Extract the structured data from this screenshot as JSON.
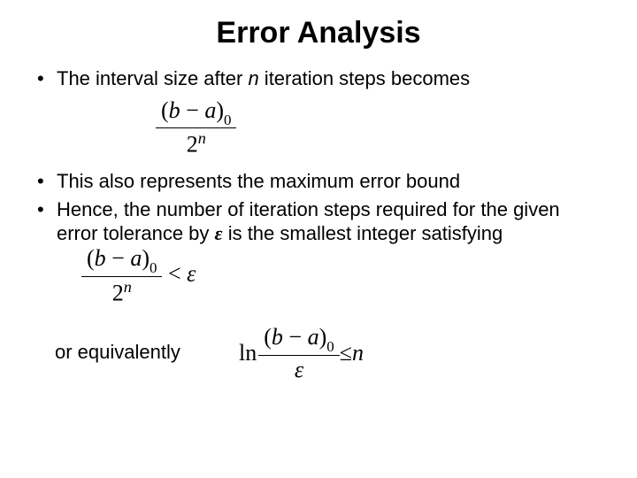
{
  "title": "Error Analysis",
  "bullets": {
    "b1_pre": "The interval size after ",
    "b1_n": "n",
    "b1_post": " iteration steps becomes",
    "b2": "This also represents the maximum error bound",
    "b3_pre": "Hence, the number of iteration steps required for the given error tolerance by ",
    "b3_post": "is the smallest integer satisfying",
    "cont": "or equivalently"
  },
  "math": {
    "frac1_num_a": "(",
    "frac1_num_b": "b",
    "frac1_num_c": " − ",
    "frac1_num_d": "a",
    "frac1_num_e": ")",
    "sub0": "0",
    "two": "2",
    "supn": "n",
    "eps": "ε",
    "lt": " < ",
    "le": " ≤ ",
    "ln": "ln",
    "n_rhs": "n"
  },
  "style": {
    "title_fontsize": 34,
    "body_fontsize": 22,
    "math_fontsize": 26,
    "text_color": "#000000",
    "background_color": "#ffffff",
    "font_body": "Arial",
    "font_math": "Times New Roman"
  }
}
